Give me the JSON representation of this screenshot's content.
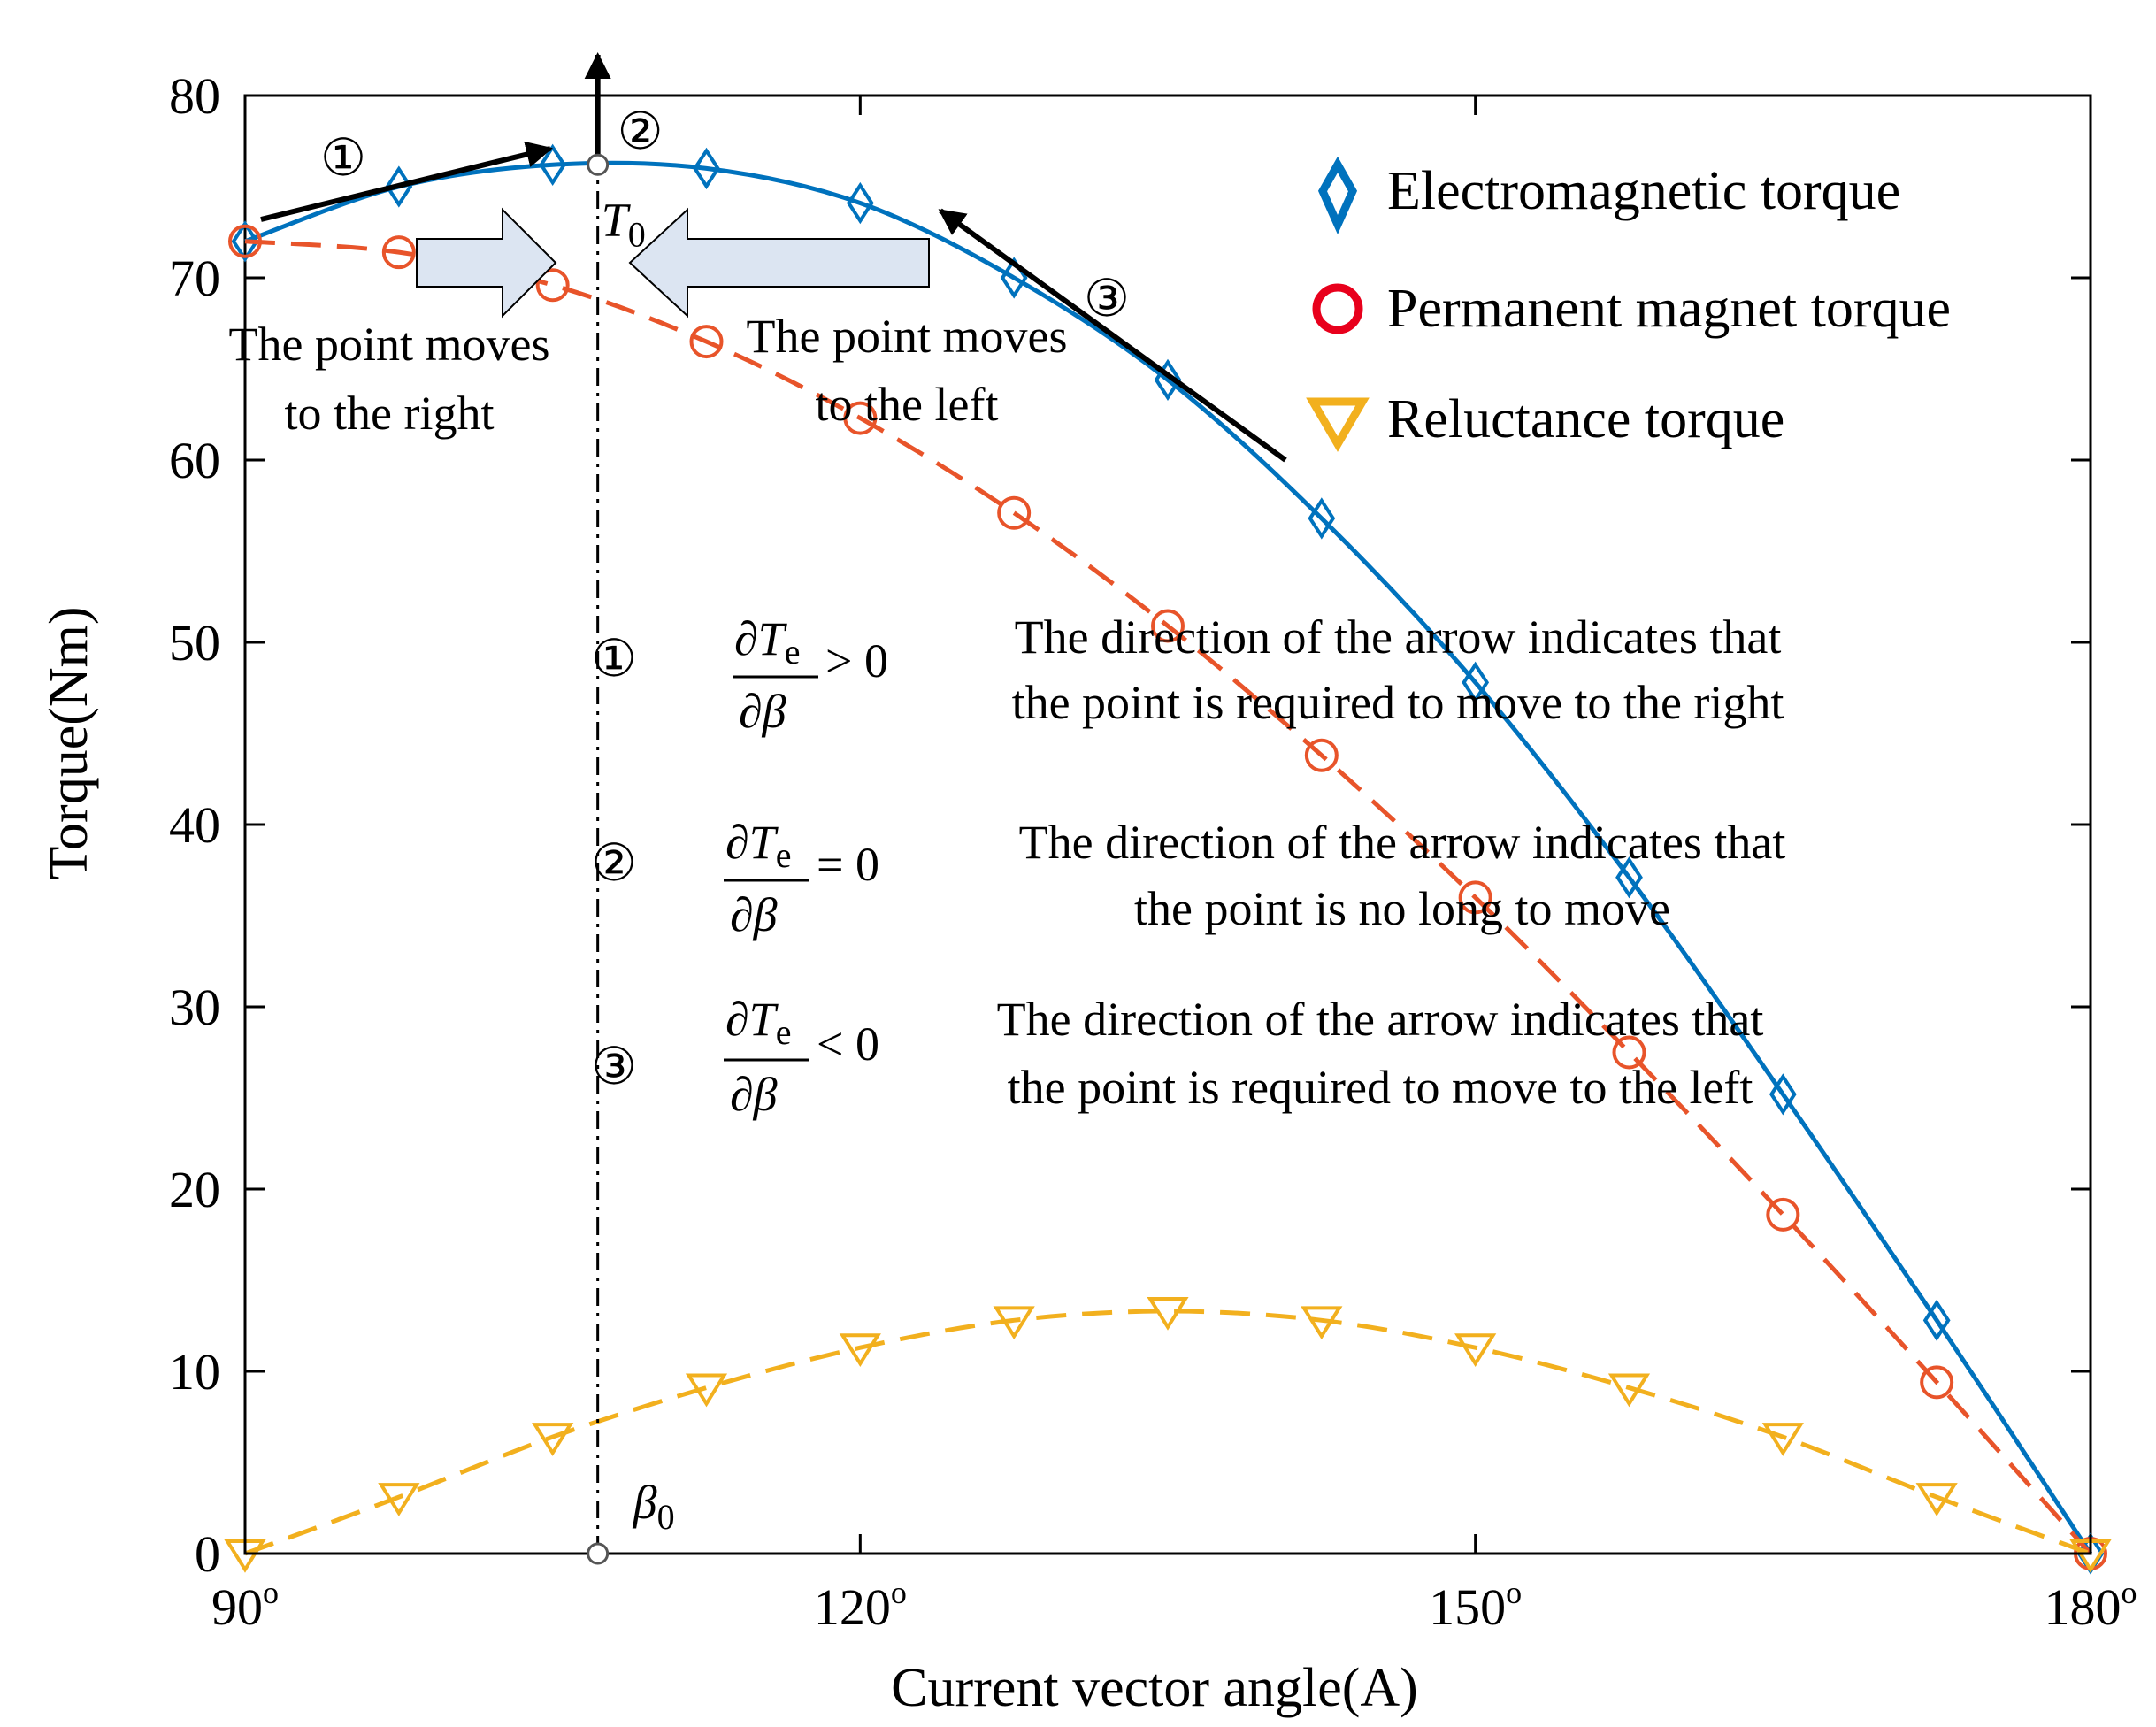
{
  "chart_data": {
    "type": "line",
    "xlabel": "Current vector angle(A)",
    "ylabel": "Torque(Nm)",
    "xlim": [
      90,
      180
    ],
    "ylim": [
      0,
      80
    ],
    "x_ticks": [
      90,
      120,
      150,
      180
    ],
    "x_tick_labels": [
      "90",
      "120",
      "150",
      "180"
    ],
    "x_tick_suffix": "o",
    "y_ticks": [
      0,
      10,
      20,
      30,
      40,
      50,
      60,
      70,
      80
    ],
    "y_tick_labels": [
      "0",
      "10",
      "20",
      "30",
      "40",
      "50",
      "60",
      "70",
      "80"
    ],
    "series": [
      {
        "name": "Electromagnetic torque",
        "color": "#0072BD",
        "line_style": "solid",
        "marker": "diamond",
        "x": [
          90,
          97.5,
          105,
          112.5,
          120,
          127.5,
          135,
          142.5,
          150,
          157.5,
          165,
          172.5,
          180
        ],
        "y": [
          72.0,
          75.0,
          76.2,
          76.0,
          74.1,
          70.0,
          64.4,
          56.8,
          47.8,
          37.1,
          25.2,
          12.8,
          0
        ]
      },
      {
        "name": "Permanent magnet torque",
        "color": "#E8542A",
        "line_style": "dashed",
        "marker": "circle",
        "x": [
          90,
          97.5,
          105,
          112.5,
          120,
          127.5,
          135,
          142.5,
          150,
          157.5,
          165,
          172.5,
          180
        ],
        "y": [
          72.0,
          71.4,
          69.6,
          66.5,
          62.3,
          57.1,
          50.9,
          43.8,
          36.0,
          27.5,
          18.6,
          9.4,
          0
        ]
      },
      {
        "name": "Reluctance torque",
        "color": "#F2B01E",
        "line_style": "dashed",
        "marker": "triangle-down",
        "x": [
          90,
          97.5,
          105,
          112.5,
          120,
          127.5,
          135,
          142.5,
          150,
          157.5,
          165,
          172.5,
          180
        ],
        "y": [
          0,
          3.1,
          6.4,
          9.1,
          11.3,
          12.8,
          13.3,
          12.8,
          11.3,
          9.1,
          6.4,
          3.1,
          0
        ]
      }
    ],
    "legend": {
      "position": "top-right",
      "entries": [
        "Electromagnetic torque",
        "Permanent magnet torque",
        "Reluctance torque"
      ]
    },
    "annotations": {
      "beta0_x": 107.2,
      "t0_y": 76.2,
      "t0_label": "T",
      "t0_subscript": "0",
      "beta0_label": "β",
      "beta0_subscript": "0",
      "marker_1": "①",
      "marker_2": "②",
      "marker_3": "③",
      "move_right_line1": "The point moves",
      "move_right_line2": "to the right",
      "move_left_line1": "The point moves",
      "move_left_line2": "to the left",
      "derivative_numerator": "∂T",
      "derivative_numerator_sub": "e",
      "derivative_denominator": "∂β",
      "cond_1_relation": "> 0",
      "cond_2_relation": "= 0",
      "cond_3_relation": "< 0",
      "cond_1_line1": "The direction of the arrow indicates that",
      "cond_1_line2": "the point is required to move to the right",
      "cond_2_line1": "The direction of the arrow indicates that",
      "cond_2_line2": "the point is no long to move",
      "cond_3_line1": "The direction of the arrow indicates that",
      "cond_3_line2": "the point is required to move to the left"
    }
  }
}
